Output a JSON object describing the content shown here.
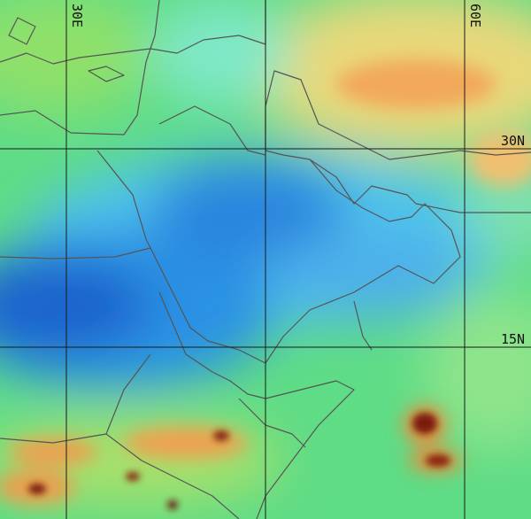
{
  "labels": {
    "longitude": [
      "30E",
      "60E"
    ],
    "latitude": [
      "30N",
      "15N"
    ]
  }
}
